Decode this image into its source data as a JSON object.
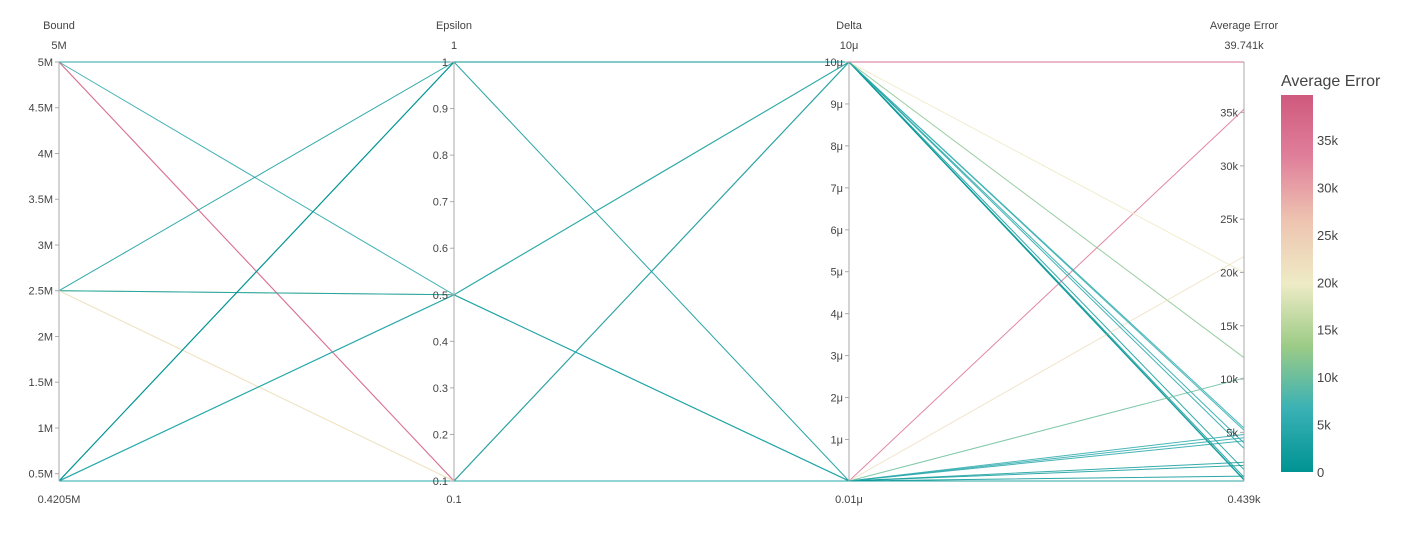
{
  "chart_data": {
    "type": "parallel_coordinates",
    "dimensions": [
      {
        "key": "bound",
        "label": "Bound",
        "range": [
          420500,
          5000000
        ],
        "range_top_label": "5M",
        "range_bottom_label": "0.4205M",
        "ticks": [
          {
            "value": 500000,
            "label": "0.5M"
          },
          {
            "value": 1000000,
            "label": "1M"
          },
          {
            "value": 1500000,
            "label": "1.5M"
          },
          {
            "value": 2000000,
            "label": "2M"
          },
          {
            "value": 2500000,
            "label": "2.5M"
          },
          {
            "value": 3000000,
            "label": "3M"
          },
          {
            "value": 3500000,
            "label": "3.5M"
          },
          {
            "value": 4000000,
            "label": "4M"
          },
          {
            "value": 4500000,
            "label": "4.5M"
          },
          {
            "value": 5000000,
            "label": "5M"
          }
        ]
      },
      {
        "key": "epsilon",
        "label": "Epsilon",
        "range": [
          0.1,
          1
        ],
        "range_top_label": "1",
        "range_bottom_label": "0.1",
        "ticks": [
          {
            "value": 0.1,
            "label": "0.1"
          },
          {
            "value": 0.2,
            "label": "0.2"
          },
          {
            "value": 0.3,
            "label": "0.3"
          },
          {
            "value": 0.4,
            "label": "0.4"
          },
          {
            "value": 0.5,
            "label": "0.5"
          },
          {
            "value": 0.6,
            "label": "0.6"
          },
          {
            "value": 0.7,
            "label": "0.7"
          },
          {
            "value": 0.8,
            "label": "0.8"
          },
          {
            "value": 0.9,
            "label": "0.9"
          },
          {
            "value": 1,
            "label": "1"
          }
        ]
      },
      {
        "key": "delta",
        "label": "Delta",
        "range": [
          1e-08,
          1e-05
        ],
        "range_top_label": "10μ",
        "range_bottom_label": "0.01μ",
        "ticks": [
          {
            "value": 1e-06,
            "label": "1μ"
          },
          {
            "value": 2e-06,
            "label": "2μ"
          },
          {
            "value": 3e-06,
            "label": "3μ"
          },
          {
            "value": 4e-06,
            "label": "4μ"
          },
          {
            "value": 5e-06,
            "label": "5μ"
          },
          {
            "value": 6e-06,
            "label": "6μ"
          },
          {
            "value": 7e-06,
            "label": "7μ"
          },
          {
            "value": 8e-06,
            "label": "8μ"
          },
          {
            "value": 9e-06,
            "label": "9μ"
          },
          {
            "value": 1e-05,
            "label": "10μ"
          }
        ]
      },
      {
        "key": "avg_error",
        "label": "Average Error",
        "range": [
          439,
          39741
        ],
        "range_top_label": "39.741k",
        "range_bottom_label": "0.439k",
        "ticks": [
          {
            "value": 5000,
            "label": "5k"
          },
          {
            "value": 10000,
            "label": "10k"
          },
          {
            "value": 15000,
            "label": "15k"
          },
          {
            "value": 20000,
            "label": "20k"
          },
          {
            "value": 25000,
            "label": "25k"
          },
          {
            "value": 30000,
            "label": "30k"
          },
          {
            "value": 35000,
            "label": "35k"
          }
        ]
      }
    ],
    "lines": [
      {
        "bound": 5000000,
        "epsilon": 0.1,
        "delta": 1e-05,
        "avg_error": 39741
      },
      {
        "bound": 5000000,
        "epsilon": 1,
        "delta": 1e-05,
        "avg_error": 526
      },
      {
        "bound": 5000000,
        "epsilon": 0.5,
        "delta": 1e-08,
        "avg_error": 4200
      },
      {
        "bound": 5000000,
        "epsilon": 0.1,
        "delta": 1e-08,
        "avg_error": 35300
      },
      {
        "bound": 2500000,
        "epsilon": 1,
        "delta": 1e-05,
        "avg_error": 1500
      },
      {
        "bound": 2500000,
        "epsilon": 0.5,
        "delta": 1e-05,
        "avg_error": 12000
      },
      {
        "bound": 2500000,
        "epsilon": 0.5,
        "delta": 1e-08,
        "avg_error": 2200
      },
      {
        "bound": 2500000,
        "epsilon": 0.1,
        "delta": 1e-05,
        "avg_error": 20000
      },
      {
        "bound": 2500000,
        "epsilon": 0.1,
        "delta": 1e-08,
        "avg_error": 21500
      },
      {
        "bound": 420500,
        "epsilon": 1,
        "delta": 1e-05,
        "avg_error": 600
      },
      {
        "bound": 420500,
        "epsilon": 1,
        "delta": 1e-05,
        "avg_error": 800
      },
      {
        "bound": 420500,
        "epsilon": 1,
        "delta": 1e-08,
        "avg_error": 439
      },
      {
        "bound": 420500,
        "epsilon": 0.5,
        "delta": 1e-05,
        "avg_error": 4000
      },
      {
        "bound": 420500,
        "epsilon": 0.5,
        "delta": 1e-08,
        "avg_error": 4500
      },
      {
        "bound": 420500,
        "epsilon": 0.5,
        "delta": 1e-05,
        "avg_error": 5200
      },
      {
        "bound": 420500,
        "epsilon": 0.1,
        "delta": 1e-05,
        "avg_error": 5400
      },
      {
        "bound": 420500,
        "epsilon": 0.1,
        "delta": 1e-08,
        "avg_error": 10100
      },
      {
        "bound": 420500,
        "epsilon": 0.1,
        "delta": 1e-08,
        "avg_error": 1900
      },
      {
        "bound": 420500,
        "epsilon": 0.1,
        "delta": 1e-08,
        "avg_error": 900
      },
      {
        "bound": 420500,
        "epsilon": 0.1,
        "delta": 1e-05,
        "avg_error": 3500
      },
      {
        "bound": 420500,
        "epsilon": 0.1,
        "delta": 1e-08,
        "avg_error": 4800
      }
    ],
    "color_by": "avg_error",
    "colorbar": {
      "title": "Average Error",
      "range": [
        0,
        39741
      ],
      "ticks": [
        {
          "value": 0,
          "label": "0"
        },
        {
          "value": 5000,
          "label": "5k"
        },
        {
          "value": 10000,
          "label": "10k"
        },
        {
          "value": 15000,
          "label": "15k"
        },
        {
          "value": 20000,
          "label": "20k"
        },
        {
          "value": 25000,
          "label": "25k"
        },
        {
          "value": 30000,
          "label": "30k"
        },
        {
          "value": 35000,
          "label": "35k"
        }
      ],
      "colorscale": [
        [
          0,
          "#009392"
        ],
        [
          0.1667,
          "#39b1b5"
        ],
        [
          0.3333,
          "#9ccb86"
        ],
        [
          0.5,
          "#eeebc6"
        ],
        [
          0.6667,
          "#eec4b0"
        ],
        [
          0.8333,
          "#e0809b"
        ],
        [
          1,
          "#cf597e"
        ]
      ]
    }
  }
}
